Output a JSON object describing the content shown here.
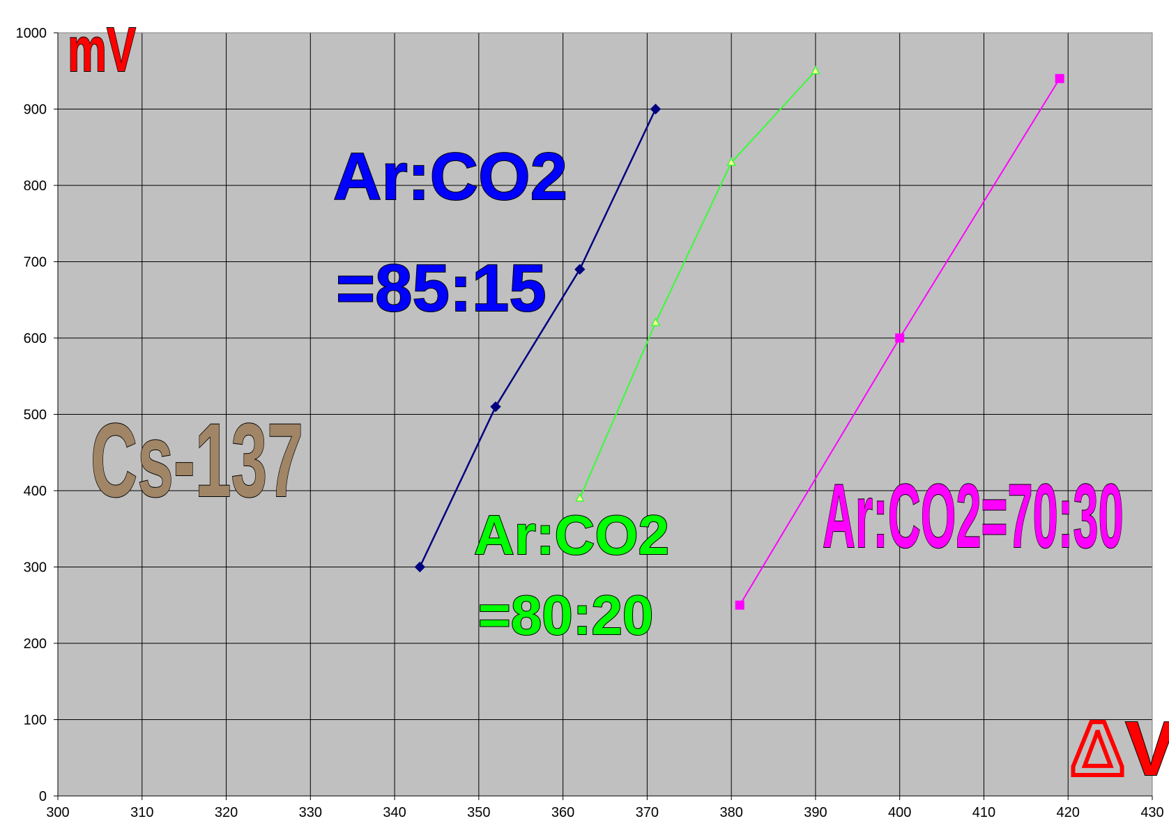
{
  "chart_data": {
    "type": "line",
    "title": "",
    "xlabel": "ΔV",
    "ylabel": "mV",
    "xlim": [
      300,
      430
    ],
    "ylim": [
      0,
      1000
    ],
    "x_ticks": [
      300,
      310,
      320,
      330,
      340,
      350,
      360,
      370,
      380,
      390,
      400,
      410,
      420,
      430
    ],
    "y_ticks": [
      0,
      100,
      200,
      300,
      400,
      500,
      600,
      700,
      800,
      900,
      1000
    ],
    "grid": true,
    "background_color": "#c0c0c0",
    "legend": "none",
    "series": [
      {
        "color": "#000080",
        "marker": "diamond",
        "x": [
          343,
          352,
          362,
          371
        ],
        "y": [
          300,
          510,
          690,
          900
        ]
      },
      {
        "color": "#33ff33",
        "marker": "triangle",
        "x": [
          362,
          371,
          380,
          390
        ],
        "y": [
          390,
          620,
          830,
          950
        ]
      },
      {
        "color": "#ff00ff",
        "marker": "square",
        "x": [
          381,
          400,
          419
        ],
        "y": [
          250,
          600,
          940
        ]
      }
    ],
    "annotations": [
      {
        "id": "ylabel",
        "text": "mV",
        "color": "#ff0000"
      },
      {
        "id": "xlabel",
        "text": "ΔV",
        "color": "#ff0000"
      },
      {
        "id": "source",
        "text": "Cs-137",
        "color": "#a08566"
      },
      {
        "id": "s1a",
        "text": "Ar:CO2",
        "color": "#0000ff"
      },
      {
        "id": "s1b",
        "text": "=85:15",
        "color": "#0000ff"
      },
      {
        "id": "s2a",
        "text": "Ar:CO2",
        "color": "#00ff00"
      },
      {
        "id": "s2b",
        "text": "=80:20",
        "color": "#00ff00"
      },
      {
        "id": "s3",
        "text": "Ar:CO2=70:30",
        "color": "#ff00ff"
      }
    ]
  }
}
